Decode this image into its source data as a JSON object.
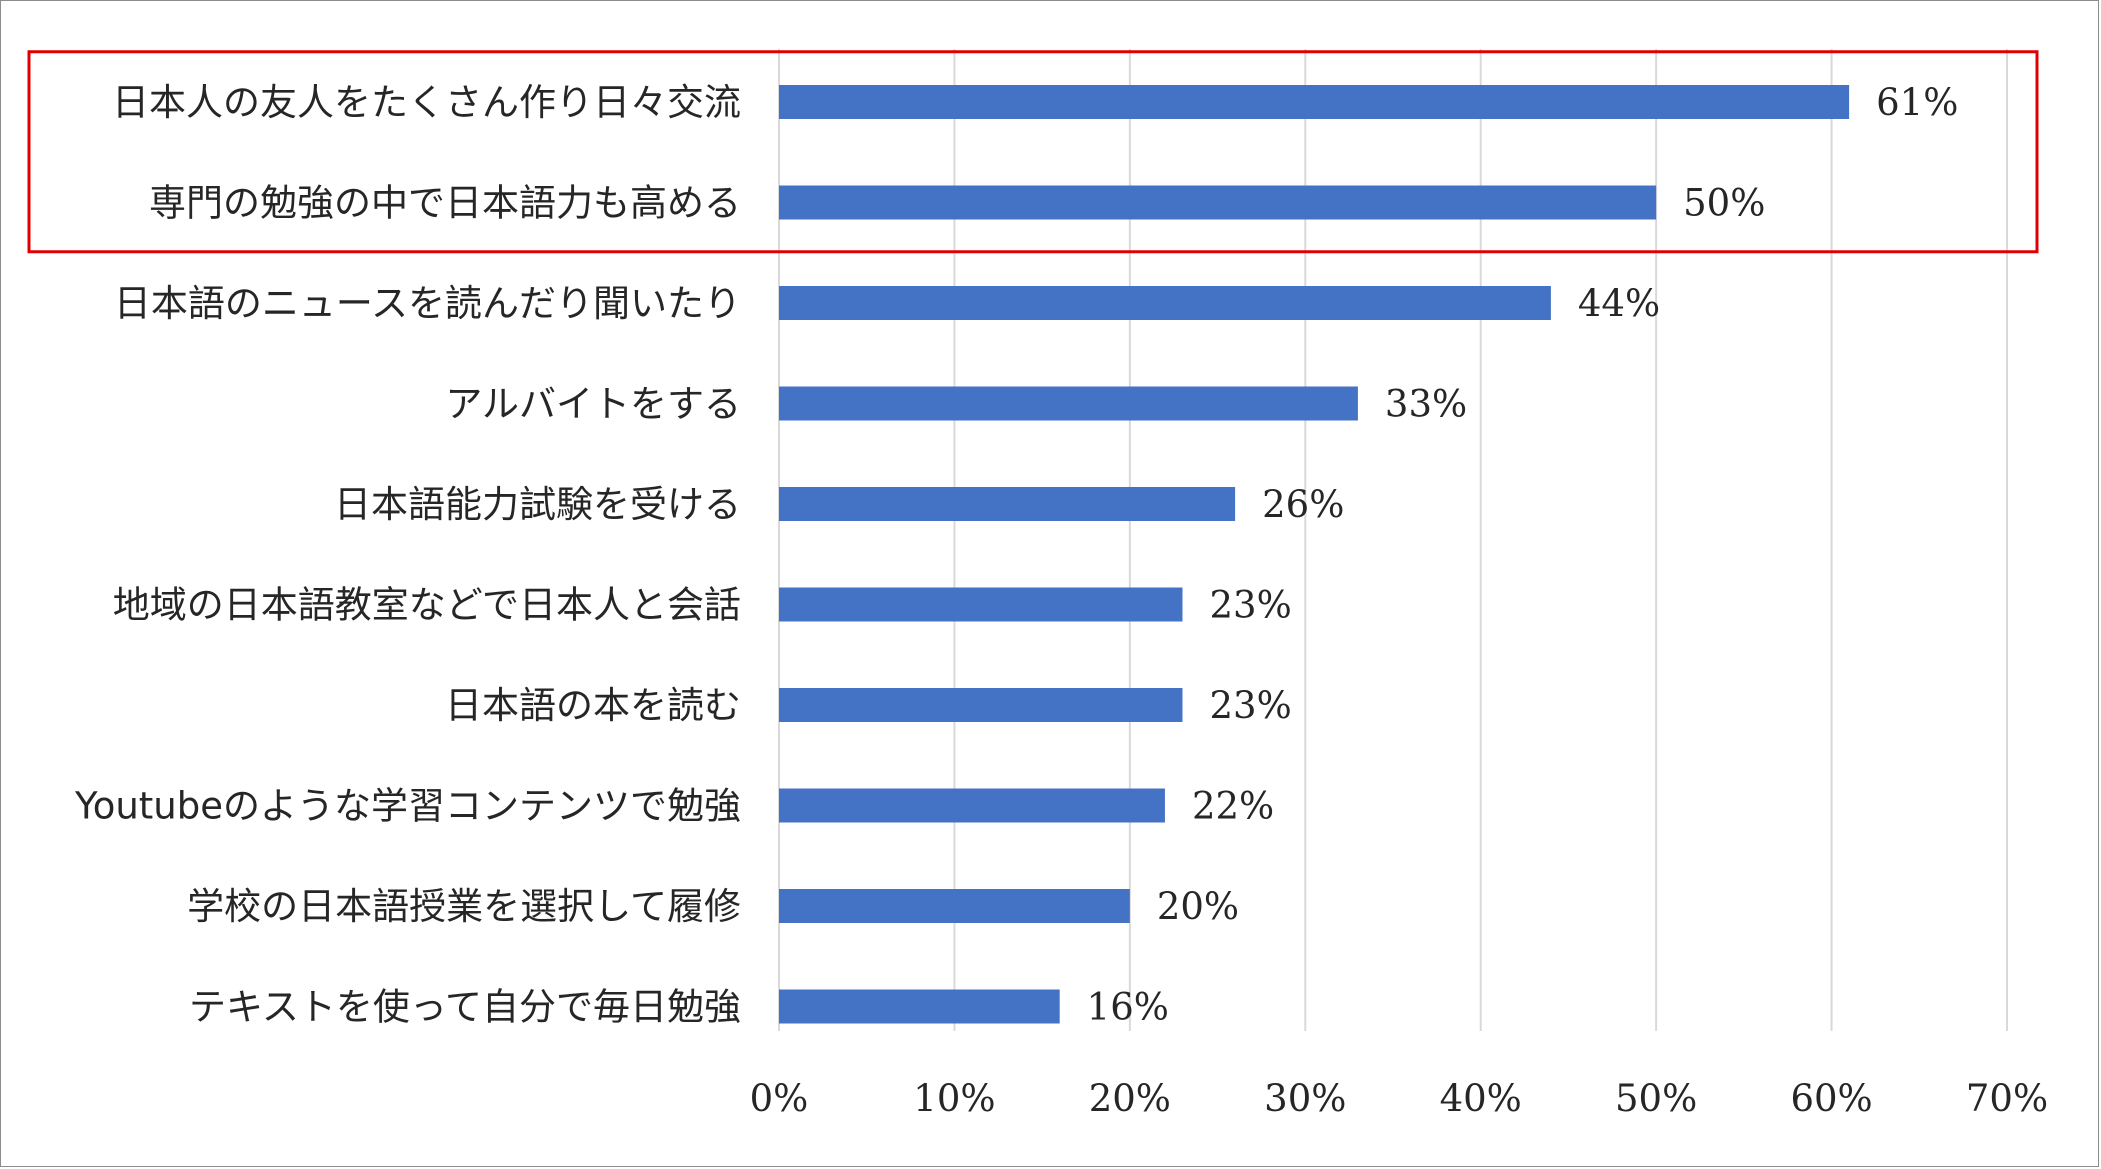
{
  "chart_data": {
    "type": "bar",
    "orientation": "horizontal",
    "categories": [
      "日本人の友人をたくさん作り日々交流",
      "専門の勉強の中で日本語力も高める",
      "日本語のニュースを読んだり聞いたり",
      "アルバイトをする",
      "日本語能力試験を受ける",
      "地域の日本語教室などで日本人と会話",
      "日本語の本を読む",
      "Youtubeのような学習コンテンツで勉強",
      "学校の日本語授業を選択して履修",
      "テキストを使って自分で毎日勉強"
    ],
    "values": [
      61,
      50,
      44,
      33,
      26,
      23,
      23,
      22,
      20,
      16
    ],
    "value_labels": [
      "61%",
      "50%",
      "44%",
      "33%",
      "26%",
      "23%",
      "23%",
      "22%",
      "20%",
      "16%"
    ],
    "xlim": [
      0,
      70
    ],
    "xticks": [
      0,
      10,
      20,
      30,
      40,
      50,
      60,
      70
    ],
    "xtick_labels": [
      "0%",
      "10%",
      "20%",
      "30%",
      "40%",
      "50%",
      "60%",
      "70%"
    ],
    "grid": "vertical",
    "legend": "none",
    "title": "",
    "xlabel": "",
    "ylabel": "",
    "highlighted_categories": [
      0,
      1
    ],
    "colors": {
      "bar": "#4472C4",
      "gridline": "#D9D9D9",
      "highlight_box": "#E00000",
      "text": "#262626"
    }
  }
}
